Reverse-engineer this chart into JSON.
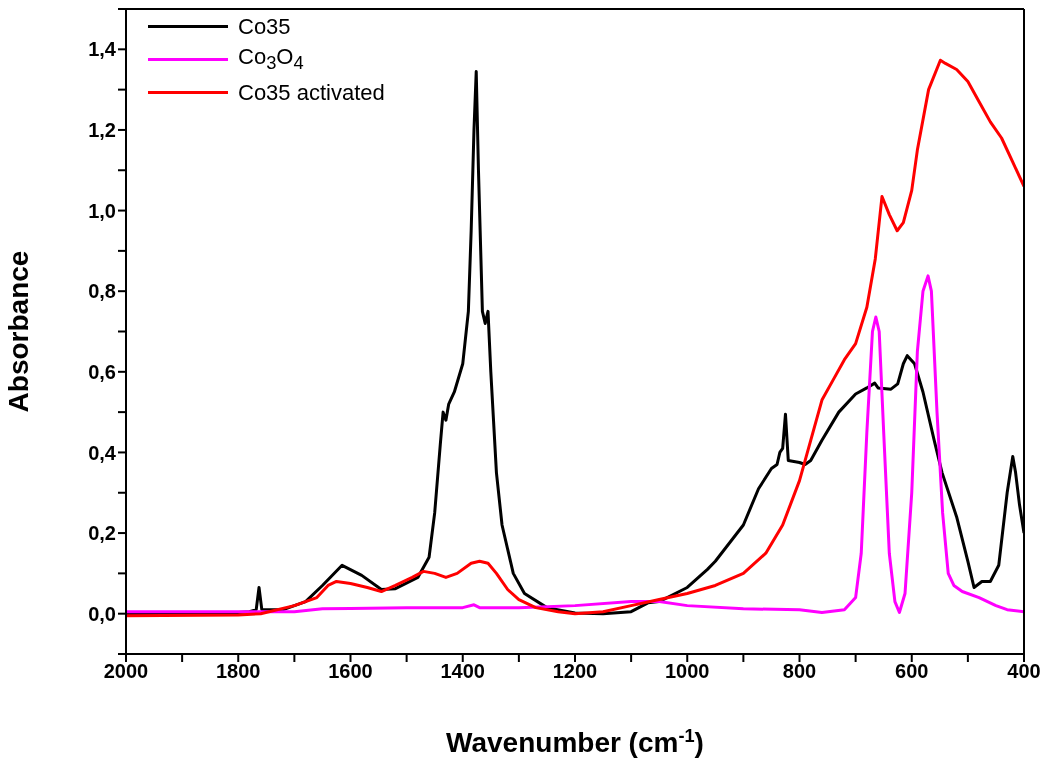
{
  "chart_data": {
    "type": "line",
    "xlabel": "Wavenumber (cm$^{-1}$)",
    "ylabel": "Absorbance",
    "xlim": [
      2000,
      400
    ],
    "ylim": [
      -0.1,
      1.5
    ],
    "xticks": [
      2000,
      {
        "value": 1900,
        "label": null
      },
      1800,
      {
        "value": 1700,
        "label": null
      },
      1600,
      {
        "value": 1500,
        "label": null
      },
      1400,
      {
        "value": 1300,
        "label": null
      },
      1200,
      {
        "value": 1100,
        "label": null
      },
      1000,
      {
        "value": 900,
        "label": null
      },
      800,
      {
        "value": 700,
        "label": null
      },
      600,
      {
        "value": 500,
        "label": null
      },
      400
    ],
    "yticks": [
      {
        "value": -0.1,
        "label": null
      },
      {
        "value": 0,
        "label": "0,0"
      },
      {
        "value": 0.1,
        "label": null
      },
      {
        "value": 0.2,
        "label": "0,2"
      },
      {
        "value": 0.3,
        "label": null
      },
      {
        "value": 0.4,
        "label": "0,4"
      },
      {
        "value": 0.5,
        "label": null
      },
      {
        "value": 0.6,
        "label": "0,6"
      },
      {
        "value": 0.7,
        "label": null
      },
      {
        "value": 0.8,
        "label": "0,8"
      },
      {
        "value": 0.9,
        "label": null
      },
      {
        "value": 1.0,
        "label": "1,0"
      },
      {
        "value": 1.1,
        "label": null
      },
      {
        "value": 1.2,
        "label": "1,2"
      },
      {
        "value": 1.3,
        "label": null
      },
      {
        "value": 1.4,
        "label": "1,4"
      },
      {
        "value": 1.5,
        "label": null
      }
    ],
    "legend": "top left",
    "grid": false,
    "marker": "none",
    "line_style": "solid",
    "series": [
      {
        "name": "Co35",
        "color": "#000000",
        "x": [
          2000,
          1800,
          1780,
          1768,
          1763,
          1758,
          1720,
          1680,
          1650,
          1615,
          1580,
          1545,
          1520,
          1480,
          1460,
          1450,
          1440,
          1435,
          1430,
          1425,
          1415,
          1400,
          1390,
          1385,
          1380,
          1376,
          1372,
          1365,
          1360,
          1355,
          1350,
          1340,
          1330,
          1310,
          1290,
          1250,
          1200,
          1150,
          1100,
          1070,
          1050,
          1000,
          964,
          950,
          900,
          873,
          850,
          840,
          835,
          830,
          825,
          820,
          800,
          790,
          780,
          760,
          730,
          700,
          680,
          666,
          660,
          637,
          625,
          615,
          608,
          595,
          580,
          560,
          546,
          520,
          500,
          489,
          475,
          460,
          445,
          430,
          420,
          415,
          408,
          400
        ],
        "values": [
          0.0,
          0.003,
          0.005,
          0.01,
          0.065,
          0.01,
          0.01,
          0.03,
          0.07,
          0.12,
          0.095,
          0.06,
          0.062,
          0.09,
          0.14,
          0.25,
          0.42,
          0.5,
          0.48,
          0.52,
          0.55,
          0.62,
          0.75,
          0.95,
          1.2,
          1.345,
          1.1,
          0.75,
          0.72,
          0.75,
          0.6,
          0.35,
          0.22,
          0.1,
          0.05,
          0.015,
          0.002,
          0.0,
          0.005,
          0.027,
          0.03,
          0.065,
          0.11,
          0.13,
          0.22,
          0.31,
          0.36,
          0.37,
          0.4,
          0.41,
          0.495,
          0.38,
          0.375,
          0.37,
          0.38,
          0.43,
          0.5,
          0.545,
          0.56,
          0.572,
          0.56,
          0.557,
          0.57,
          0.62,
          0.64,
          0.62,
          0.55,
          0.43,
          0.35,
          0.24,
          0.13,
          0.065,
          0.08,
          0.08,
          0.12,
          0.3,
          0.39,
          0.35,
          0.27,
          0.2
        ]
      },
      {
        "name": "Co$_{3}$O$_{4}$",
        "color": "#ff00ff",
        "x": [
          2000,
          1700,
          1650,
          1600,
          1500,
          1400,
          1380,
          1370,
          1300,
          1200,
          1100,
          1050,
          1000,
          900,
          800,
          760,
          720,
          700,
          690,
          680,
          670,
          664,
          658,
          650,
          640,
          630,
          622,
          612,
          600,
          590,
          580,
          571,
          565,
          555,
          545,
          535,
          525,
          510,
          480,
          450,
          430,
          400
        ],
        "values": [
          0.005,
          0.005,
          0.012,
          0.013,
          0.015,
          0.015,
          0.022,
          0.015,
          0.015,
          0.02,
          0.03,
          0.03,
          0.02,
          0.012,
          0.01,
          0.003,
          0.01,
          0.04,
          0.15,
          0.45,
          0.7,
          0.736,
          0.7,
          0.45,
          0.15,
          0.03,
          0.003,
          0.05,
          0.3,
          0.65,
          0.8,
          0.838,
          0.8,
          0.5,
          0.25,
          0.1,
          0.07,
          0.055,
          0.04,
          0.02,
          0.01,
          0.005
        ]
      },
      {
        "name": "Co35 activated",
        "color": "#ff0000",
        "x": [
          2000,
          1800,
          1760,
          1700,
          1660,
          1640,
          1625,
          1600,
          1570,
          1545,
          1520,
          1490,
          1470,
          1450,
          1430,
          1410,
          1385,
          1370,
          1355,
          1340,
          1320,
          1300,
          1270,
          1230,
          1200,
          1150,
          1100,
          1050,
          1000,
          950,
          900,
          860,
          830,
          800,
          780,
          760,
          740,
          720,
          700,
          680,
          665,
          653,
          640,
          626,
          615,
          600,
          590,
          570,
          549,
          540,
          520,
          500,
          480,
          460,
          440,
          420,
          400
        ],
        "values": [
          -0.005,
          -0.003,
          0.0,
          0.02,
          0.04,
          0.07,
          0.08,
          0.075,
          0.065,
          0.055,
          0.07,
          0.09,
          0.105,
          0.1,
          0.09,
          0.1,
          0.125,
          0.13,
          0.125,
          0.1,
          0.06,
          0.035,
          0.015,
          0.005,
          0.0,
          0.005,
          0.02,
          0.035,
          0.05,
          0.07,
          0.1,
          0.15,
          0.22,
          0.33,
          0.43,
          0.53,
          0.58,
          0.63,
          0.67,
          0.76,
          0.88,
          1.035,
          0.99,
          0.95,
          0.97,
          1.05,
          1.15,
          1.3,
          1.373,
          1.365,
          1.35,
          1.32,
          1.27,
          1.22,
          1.18,
          1.12,
          1.06
        ]
      }
    ]
  }
}
